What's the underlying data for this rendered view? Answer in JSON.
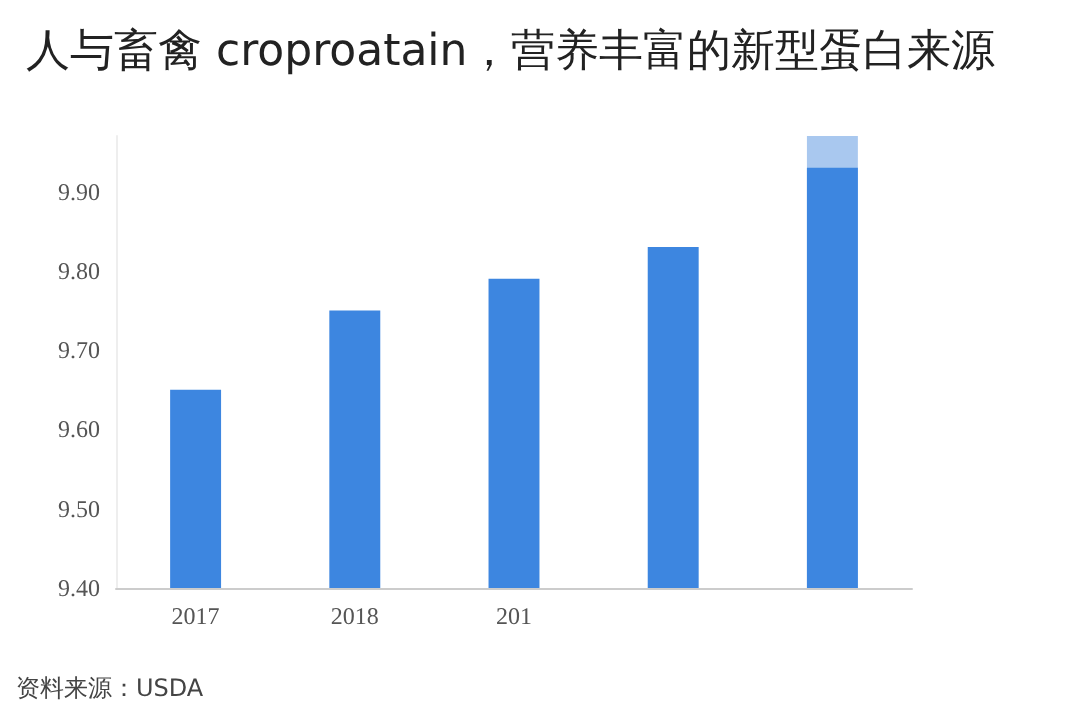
{
  "chart_data": {
    "type": "bar",
    "title": "人与畜禽 croproatain，营养丰富的新型蛋白来源",
    "categories": [
      "2017",
      "2018",
      "201",
      null,
      null
    ],
    "series": [
      {
        "color": "#a9c8ef",
        "values": [
          null,
          null,
          null,
          null,
          9.97
        ]
      },
      {
        "color": "#3d86e0",
        "values": [
          9.65,
          9.75,
          9.79,
          9.83,
          9.93
        ]
      }
    ],
    "ylim": [
      9.4,
      9.97
    ],
    "yticks": [
      {
        "value": 9.4,
        "label": "9.40"
      },
      {
        "value": 9.5,
        "label": "9.50"
      },
      {
        "value": 9.6,
        "label": "9.60"
      },
      {
        "value": 9.7,
        "label": "9.70"
      },
      {
        "value": 9.8,
        "label": "9.80"
      },
      {
        "value": 9.9,
        "label": "9.90"
      }
    ],
    "grid": false,
    "annotations": [
      "资料来源：USDA"
    ]
  }
}
